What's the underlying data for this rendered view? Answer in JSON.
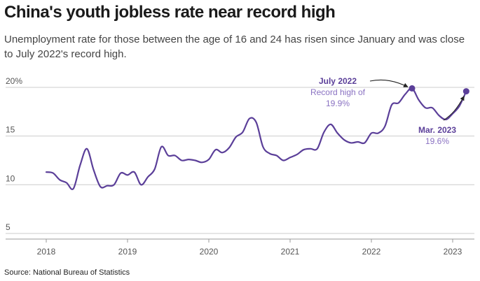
{
  "header": {
    "title": "China's youth jobless rate near record high",
    "subtitle": "Unemployment rate for those between the age of 16 and 24 has risen since January and was close to July 2022's record high."
  },
  "footer": {
    "source": "Source: National Bureau of Statistics"
  },
  "colors": {
    "line": "#5b3f99",
    "grid": "#cccccc",
    "text": "#555555"
  },
  "chart_data": {
    "type": "line",
    "title": "China's youth jobless rate near record high",
    "subtitle": "Unemployment rate for those between the age of 16 and 24 has risen since January and was close to July 2022's record high.",
    "xlabel": "",
    "ylabel": "",
    "ylim": [
      5,
      20
    ],
    "xlim": [
      "2018-01",
      "2023-05"
    ],
    "yticks": [
      20,
      15,
      10,
      5
    ],
    "ytick_labels": [
      "20%",
      "15",
      "10",
      "5"
    ],
    "xtick_labels": [
      "2018",
      "2019",
      "2020",
      "2021",
      "2022",
      "2023"
    ],
    "grid": true,
    "series": [
      {
        "x": [
          "2018-01",
          "2018-02",
          "2018-03",
          "2018-04",
          "2018-05",
          "2018-06",
          "2018-07",
          "2018-08",
          "2018-09",
          "2018-10",
          "2018-11",
          "2018-12",
          "2019-01",
          "2019-02",
          "2019-03",
          "2019-04",
          "2019-05",
          "2019-06",
          "2019-07",
          "2019-08",
          "2019-09",
          "2019-10",
          "2019-11",
          "2019-12",
          "2020-01",
          "2020-02",
          "2020-03",
          "2020-04",
          "2020-05",
          "2020-06",
          "2020-07",
          "2020-08",
          "2020-09",
          "2020-10",
          "2020-11",
          "2020-12",
          "2021-01",
          "2021-02",
          "2021-03",
          "2021-04",
          "2021-05",
          "2021-06",
          "2021-07",
          "2021-08",
          "2021-09",
          "2021-10",
          "2021-11",
          "2021-12",
          "2022-01",
          "2022-02",
          "2022-03",
          "2022-04",
          "2022-05",
          "2022-06",
          "2022-07",
          "2022-08",
          "2022-09",
          "2022-10",
          "2022-11",
          "2022-12",
          "2023-01",
          "2023-02",
          "2023-03"
        ],
        "values": [
          11.3,
          11.2,
          10.5,
          10.2,
          9.6,
          12.0,
          13.7,
          11.5,
          9.8,
          9.9,
          10.0,
          11.2,
          11.0,
          11.3,
          10.0,
          10.8,
          11.6,
          13.9,
          13.0,
          13.0,
          12.5,
          12.6,
          12.5,
          12.3,
          12.6,
          13.6,
          13.3,
          13.8,
          14.9,
          15.4,
          16.8,
          16.4,
          13.9,
          13.2,
          13.0,
          12.5,
          12.8,
          13.1,
          13.6,
          13.7,
          13.7,
          15.4,
          16.2,
          15.3,
          14.6,
          14.3,
          14.4,
          14.3,
          15.3,
          15.3,
          16.0,
          18.2,
          18.4,
          19.3,
          19.9,
          18.7,
          17.9,
          17.9,
          17.1,
          16.7,
          17.3,
          18.1,
          19.6
        ]
      }
    ],
    "annotations": [
      {
        "x": "2022-07",
        "y": 19.9,
        "title": "July 2022",
        "lines": [
          "Record high of",
          "19.9%"
        ]
      },
      {
        "x": "2023-03",
        "y": 19.6,
        "title": "Mar. 2023",
        "lines": [
          "19.6%"
        ]
      }
    ]
  }
}
